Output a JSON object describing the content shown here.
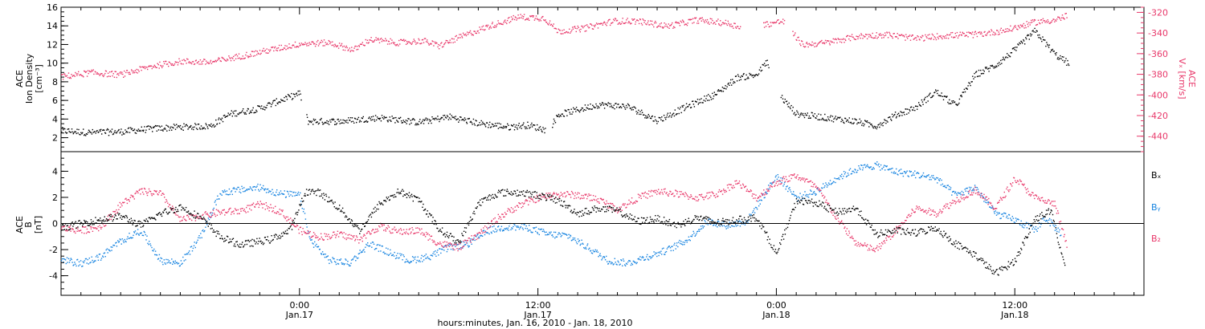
{
  "colors": {
    "density": "#000000",
    "vx": "#e8386a",
    "bx": "#000000",
    "by": "#1583e0",
    "bz": "#e8386a",
    "axis": "#000000"
  },
  "time_axis": {
    "tick_labels": [
      {
        "hours": 0,
        "time": "0:00",
        "date": "Jan.17"
      },
      {
        "hours": 12,
        "time": "12:00",
        "date": "Jan.17"
      },
      {
        "hours": 24,
        "time": "0:00",
        "date": "Jan.18"
      },
      {
        "hours": 36,
        "time": "12:00",
        "date": "Jan.18"
      }
    ],
    "xlabel": "hours:minutes, Jan. 16, 2010 - Jan. 18, 2010"
  },
  "chart_data": [
    {
      "type": "scatter",
      "panel": "top",
      "xlim": [
        -12,
        42.5
      ],
      "ylabel_left": [
        "ACE",
        "Ion Density",
        "[cm⁻³]"
      ],
      "ylabel_right": [
        "ACE",
        "Vₓ [km/s]"
      ],
      "ylim_left": [
        0.5,
        16
      ],
      "ylim_right": [
        -455,
        -315
      ],
      "left_ticks": [
        2,
        4,
        6,
        8,
        10,
        12,
        14,
        16
      ],
      "right_ticks": [
        -320,
        -340,
        -360,
        -380,
        -400,
        -420,
        -440
      ],
      "series": [
        {
          "key": "density",
          "axis": "left",
          "points": [
            [
              -12,
              2.8
            ],
            [
              -10.5,
              2.6
            ],
            [
              -9,
              2.7
            ],
            [
              -7.5,
              3.0
            ],
            [
              -6,
              3.2
            ],
            [
              -4.5,
              3.3
            ],
            [
              -3.5,
              4.6
            ],
            [
              -2,
              5.2
            ],
            [
              -0.8,
              6.2
            ],
            [
              0,
              6.8
            ],
            [
              0.4,
              3.8
            ],
            [
              2,
              3.8
            ],
            [
              4,
              4.2
            ],
            [
              6,
              3.7
            ],
            [
              7.5,
              4.3
            ],
            [
              9,
              3.6
            ],
            [
              10.5,
              3.2
            ],
            [
              11.5,
              3.4
            ],
            [
              12.5,
              2.8
            ],
            [
              13,
              4.5
            ],
            [
              15,
              5.6
            ],
            [
              16.5,
              5.4
            ],
            [
              18,
              3.9
            ],
            [
              19.5,
              5.4
            ],
            [
              21,
              6.8
            ],
            [
              22,
              8.5
            ],
            [
              23,
              8.8
            ],
            [
              23.5,
              10.2
            ],
            [
              24.3,
              6.2
            ],
            [
              25,
              4.6
            ],
            [
              26.5,
              4.2
            ],
            [
              28,
              3.8
            ],
            [
              29,
              3.3
            ],
            [
              30,
              4.5
            ],
            [
              31,
              5.3
            ],
            [
              32,
              7.0
            ],
            [
              33,
              5.5
            ],
            [
              34,
              8.8
            ],
            [
              35,
              9.8
            ],
            [
              36,
              11.5
            ],
            [
              37,
              13.5
            ],
            [
              38,
              11.0
            ],
            [
              38.7,
              10.0
            ]
          ],
          "gaps": [
            [
              0.1,
              0.3
            ],
            [
              12.4,
              12.7
            ],
            [
              23.6,
              24.2
            ]
          ]
        },
        {
          "key": "vx",
          "axis": "right",
          "points": [
            [
              -12,
              -382
            ],
            [
              -10.5,
              -378
            ],
            [
              -9,
              -380
            ],
            [
              -7.5,
              -372
            ],
            [
              -6,
              -367
            ],
            [
              -4.5,
              -368
            ],
            [
              -3,
              -362
            ],
            [
              -1.5,
              -356
            ],
            [
              0,
              -350
            ],
            [
              1.5,
              -349
            ],
            [
              2.7,
              -356
            ],
            [
              3.5,
              -346
            ],
            [
              5,
              -349
            ],
            [
              6.2,
              -347
            ],
            [
              7,
              -352
            ],
            [
              8,
              -344
            ],
            [
              9.5,
              -333
            ],
            [
              11,
              -324
            ],
            [
              12.3,
              -325
            ],
            [
              13,
              -338
            ],
            [
              14.3,
              -335
            ],
            [
              15.8,
              -328
            ],
            [
              17,
              -328
            ],
            [
              18.5,
              -333
            ],
            [
              20,
              -327
            ],
            [
              21.5,
              -330
            ],
            [
              22,
              -333
            ],
            [
              23.5,
              -331
            ],
            [
              24.3,
              -328
            ],
            [
              25.3,
              -351
            ],
            [
              26.5,
              -349
            ],
            [
              28,
              -343
            ],
            [
              29.5,
              -341
            ],
            [
              31,
              -345
            ],
            [
              32.5,
              -342
            ],
            [
              34,
              -341
            ],
            [
              35.5,
              -337
            ],
            [
              37,
              -329
            ],
            [
              38,
              -327
            ],
            [
              38.6,
              -323
            ]
          ],
          "gaps": [
            [
              22.2,
              23.3
            ],
            [
              24.4,
              24.8
            ]
          ]
        }
      ]
    },
    {
      "type": "scatter",
      "panel": "bottom",
      "xlim": [
        -12,
        42.5
      ],
      "ylabel_left": [
        "ACE",
        "B",
        "[nT]"
      ],
      "ylim_left": [
        -5.5,
        5.5
      ],
      "left_ticks": [
        -4,
        -2,
        0,
        2,
        4
      ],
      "zero_line": true,
      "legend": [
        "Bₓ",
        "Bᵧ",
        "B₂"
      ],
      "series": [
        {
          "key": "bx",
          "label": "Bₓ",
          "points": [
            [
              -12,
              -0.3
            ],
            [
              -10.5,
              0.2
            ],
            [
              -9,
              0.6
            ],
            [
              -8,
              -0.1
            ],
            [
              -7,
              0.8
            ],
            [
              -6,
              1.3
            ],
            [
              -5,
              0.5
            ],
            [
              -4,
              -1.0
            ],
            [
              -3,
              -1.6
            ],
            [
              -1.5,
              -1.2
            ],
            [
              -0.5,
              -0.5
            ],
            [
              0.3,
              2.5
            ],
            [
              1,
              2.4
            ],
            [
              2,
              1.2
            ],
            [
              3,
              -0.5
            ],
            [
              4,
              1.5
            ],
            [
              5,
              2.5
            ],
            [
              6,
              1.8
            ],
            [
              7,
              -0.4
            ],
            [
              8,
              -1.4
            ],
            [
              9,
              1.6
            ],
            [
              10,
              2.4
            ],
            [
              11,
              2.4
            ],
            [
              12,
              2.2
            ],
            [
              13,
              1.8
            ],
            [
              14,
              0.8
            ],
            [
              15,
              1.2
            ],
            [
              16,
              1.0
            ],
            [
              17,
              0.2
            ],
            [
              18,
              0.4
            ],
            [
              19,
              -0.1
            ],
            [
              20,
              0.5
            ],
            [
              21,
              0.1
            ],
            [
              22,
              0.3
            ],
            [
              23,
              0.5
            ],
            [
              24,
              -2.3
            ],
            [
              25,
              1.8
            ],
            [
              26,
              1.6
            ],
            [
              27,
              0.9
            ],
            [
              28,
              1.2
            ],
            [
              29,
              -0.8
            ],
            [
              30,
              -0.5
            ],
            [
              31,
              -0.7
            ],
            [
              32,
              -0.3
            ],
            [
              33,
              -1.5
            ],
            [
              34,
              -2.4
            ],
            [
              35,
              -3.8
            ],
            [
              36,
              -2.8
            ],
            [
              37,
              0.4
            ],
            [
              37.8,
              1.0
            ],
            [
              38.5,
              -3.3
            ]
          ]
        },
        {
          "key": "by",
          "label": "Bᵧ",
          "points": [
            [
              -12,
              -2.8
            ],
            [
              -11,
              -3.0
            ],
            [
              -10,
              -2.5
            ],
            [
              -9,
              -1.3
            ],
            [
              -8,
              -0.5
            ],
            [
              -7,
              -2.8
            ],
            [
              -6,
              -3.0
            ],
            [
              -5,
              -1.0
            ],
            [
              -4,
              2.4
            ],
            [
              -3,
              2.6
            ],
            [
              -2,
              2.8
            ],
            [
              -1,
              2.3
            ],
            [
              0,
              2.2
            ],
            [
              0.5,
              -1.2
            ],
            [
              1.5,
              -2.8
            ],
            [
              2.5,
              -3.0
            ],
            [
              3.5,
              -1.5
            ],
            [
              4.5,
              -2.2
            ],
            [
              5.5,
              -2.8
            ],
            [
              6.5,
              -2.5
            ],
            [
              7.5,
              -1.8
            ],
            [
              8.5,
              -1.5
            ],
            [
              9.5,
              -0.5
            ],
            [
              10.5,
              -0.2
            ],
            [
              11.5,
              -0.3
            ],
            [
              12.5,
              -0.8
            ],
            [
              13.5,
              -0.9
            ],
            [
              14.5,
              -1.8
            ],
            [
              15.5,
              -2.8
            ],
            [
              16.5,
              -3.0
            ],
            [
              17.5,
              -2.5
            ],
            [
              18.5,
              -2.0
            ],
            [
              19.5,
              -1.2
            ],
            [
              20.5,
              0.2
            ],
            [
              21.5,
              -0.1
            ],
            [
              22.5,
              0.2
            ],
            [
              24,
              3.7
            ],
            [
              25,
              2.0
            ],
            [
              26,
              2.5
            ],
            [
              27,
              3.5
            ],
            [
              28,
              4.2
            ],
            [
              29,
              4.5
            ],
            [
              30,
              4.0
            ],
            [
              31,
              3.8
            ],
            [
              32,
              3.5
            ],
            [
              33,
              2.2
            ],
            [
              34,
              2.8
            ],
            [
              35,
              0.8
            ],
            [
              36,
              0.3
            ],
            [
              37,
              -0.5
            ],
            [
              37.5,
              0.5
            ],
            [
              38.3,
              -0.7
            ]
          ]
        },
        {
          "key": "bz",
          "label": "B₂",
          "points": [
            [
              -12,
              -0.3
            ],
            [
              -11,
              -0.5
            ],
            [
              -10,
              -0.2
            ],
            [
              -9,
              1.5
            ],
            [
              -8,
              2.5
            ],
            [
              -7,
              2.3
            ],
            [
              -6,
              0.3
            ],
            [
              -5,
              0.6
            ],
            [
              -4,
              0.9
            ],
            [
              -3,
              1.0
            ],
            [
              -2,
              1.5
            ],
            [
              -1,
              1.0
            ],
            [
              0,
              -0.5
            ],
            [
              1,
              -1.0
            ],
            [
              2,
              -0.8
            ],
            [
              3,
              -1.2
            ],
            [
              4,
              -0.2
            ],
            [
              5,
              -0.6
            ],
            [
              6,
              -0.5
            ],
            [
              7,
              -1.5
            ],
            [
              8,
              -1.8
            ],
            [
              9,
              -0.8
            ],
            [
              10,
              0.5
            ],
            [
              11,
              1.4
            ],
            [
              12,
              2.0
            ],
            [
              13,
              2.3
            ],
            [
              14,
              2.2
            ],
            [
              15,
              1.9
            ],
            [
              16,
              1.1
            ],
            [
              17,
              2.0
            ],
            [
              18,
              2.5
            ],
            [
              19,
              2.3
            ],
            [
              20,
              2.0
            ],
            [
              21,
              2.3
            ],
            [
              22,
              3.2
            ],
            [
              23,
              2.0
            ],
            [
              24,
              3.2
            ],
            [
              25,
              3.7
            ],
            [
              26,
              2.8
            ],
            [
              27,
              0.5
            ],
            [
              28,
              -1.5
            ],
            [
              29,
              -2.0
            ],
            [
              30,
              -0.5
            ],
            [
              31,
              1.2
            ],
            [
              32,
              0.8
            ],
            [
              33,
              1.8
            ],
            [
              34,
              2.6
            ],
            [
              35,
              1.2
            ],
            [
              36,
              3.5
            ],
            [
              37,
              2.0
            ],
            [
              38,
              1.5
            ],
            [
              38.6,
              -1.7
            ]
          ]
        }
      ]
    }
  ]
}
